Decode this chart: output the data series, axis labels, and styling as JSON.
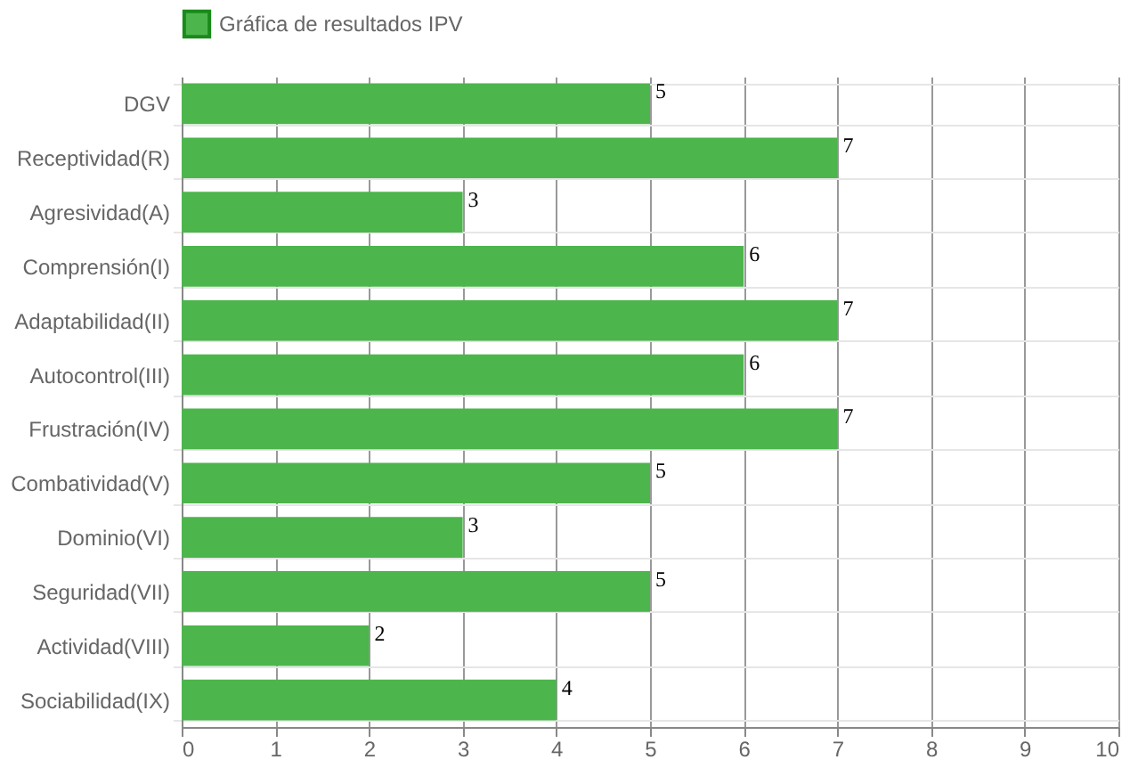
{
  "chart_data": {
    "type": "bar",
    "orientation": "horizontal",
    "categories": [
      "DGV",
      "Receptividad(R)",
      "Agresividad(A)",
      "Comprensión(I)",
      "Adaptabilidad(II)",
      "Autocontrol(III)",
      "Frustración(IV)",
      "Combatividad(V)",
      "Dominio(VI)",
      "Seguridad(VII)",
      "Actividad(VIII)",
      "Sociabilidad(IX)"
    ],
    "series": [
      {
        "name": "Gráfica de resultados IPV",
        "color": "#4cb54c",
        "values": [
          5,
          7,
          3,
          6,
          7,
          6,
          7,
          5,
          3,
          5,
          2,
          4
        ]
      }
    ],
    "xlim": [
      0,
      10
    ],
    "xticks": [
      0,
      1,
      2,
      3,
      4,
      5,
      6,
      7,
      8,
      9,
      10
    ],
    "grid": true,
    "legend": "top",
    "data_labels": true
  }
}
